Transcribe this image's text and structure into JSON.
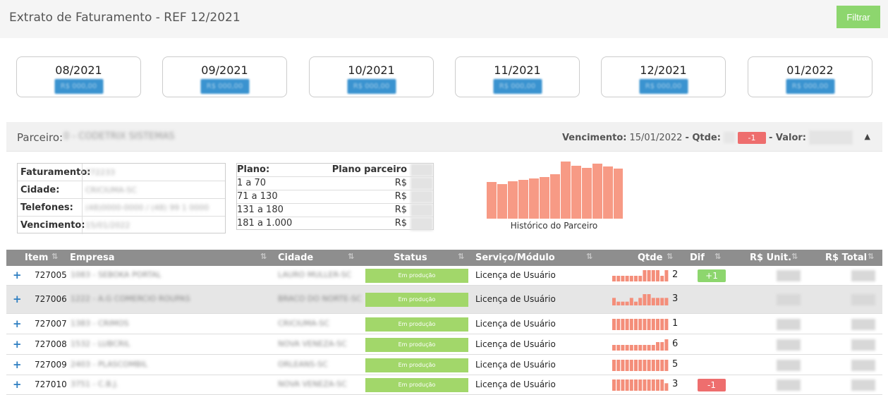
{
  "header": {
    "title": "Extrato de Faturamento - REF 12/2021",
    "filter_label": "Filtrar"
  },
  "months": [
    {
      "label": "08/2021",
      "value": "R$ 000,00"
    },
    {
      "label": "09/2021",
      "value": "R$ 000,00"
    },
    {
      "label": "10/2021",
      "value": "R$ 000,00"
    },
    {
      "label": "11/2021",
      "value": "R$ 000,00"
    },
    {
      "label": "12/2021",
      "value": "R$ 000,00"
    },
    {
      "label": "01/2022",
      "value": "R$ 000,00"
    }
  ],
  "partner": {
    "label": "Parceiro:",
    "name": "0 - CODETRIX SISTEMAS",
    "vencimento_label": "Vencimento:",
    "vencimento": "15/01/2022",
    "qtde_label": "- Qtde:",
    "qtde_delta": "-1",
    "valor_label": "- Valor:"
  },
  "info": [
    {
      "key": "Faturamento:",
      "value": "772233"
    },
    {
      "key": "Cidade:",
      "value": "CRICIUMA-SC"
    },
    {
      "key": "Telefones:",
      "value": "(48)0000-0000 / (48) 99 1 0000"
    },
    {
      "key": "Vencimento:",
      "value": "15/01/2022"
    }
  ],
  "plan": {
    "head_left": "Plano:",
    "head_right": "Plano parceiro",
    "rows": [
      {
        "range": "1 a 70",
        "price": "R$"
      },
      {
        "range": "71 a 130",
        "price": "R$"
      },
      {
        "range": "131 a 180",
        "price": "R$"
      },
      {
        "range": "181 a 1.000",
        "price": "R$"
      }
    ]
  },
  "history": {
    "label": "Histórico do Parceiro",
    "values": [
      52,
      49,
      53,
      55,
      57,
      59,
      63,
      81,
      75,
      72,
      78,
      74,
      71
    ],
    "color": "#f79a85"
  },
  "columns": [
    {
      "label": "Item",
      "sort": "⇅"
    },
    {
      "label": "Empresa",
      "sort": "⇅"
    },
    {
      "label": "Cidade",
      "sort": "⇅"
    },
    {
      "label": "Status",
      "sort": "⇅"
    },
    {
      "label": "Serviço/Módulo",
      "sort": "⇅"
    },
    {
      "label": "Qtde",
      "sort": "⇅"
    },
    {
      "label": "Dif",
      "sort": "⇅"
    },
    {
      "label": "R$ Unit.",
      "sort": "⇅"
    },
    {
      "label": "R$ Total",
      "sort": "⇅"
    }
  ],
  "rows": [
    {
      "expand": "+",
      "item": "727005",
      "empresa": "1083 - SEBOKA PORTAL",
      "cidade": "LAURO MULLER-SC",
      "status": "Em produção",
      "servico": "Licença de Usuário",
      "qtde": "2",
      "dif": "+1",
      "dif_type": "green",
      "spark": [
        1,
        1,
        1,
        1,
        1,
        1,
        1,
        2,
        2,
        2,
        2,
        1,
        2
      ]
    },
    {
      "expand": "+",
      "item": "727006",
      "empresa": "1222 - A.G COMERCIO ROUPAS",
      "cidade": "BRACO DO NORTE-SC",
      "status": "Em produção",
      "servico": "Licença de Usuário",
      "qtde": "3",
      "dif": "",
      "dif_type": "",
      "spark": [
        2,
        1,
        1,
        1,
        2,
        1,
        2,
        3,
        3,
        2,
        2,
        2,
        2
      ]
    },
    {
      "expand": "+",
      "item": "727007",
      "empresa": "1383 - CRIMOS",
      "cidade": "CRICIUMA-SC",
      "status": "Em produção",
      "servico": "Licença de Usuário",
      "qtde": "1",
      "dif": "",
      "dif_type": "",
      "spark": [
        1,
        1,
        1,
        1,
        1,
        1,
        1,
        1,
        1,
        1,
        1,
        1,
        1
      ]
    },
    {
      "expand": "+",
      "item": "727008",
      "empresa": "1532 - LUBCRIL",
      "cidade": "NOVA VENEZA-SC",
      "status": "Em produção",
      "servico": "Licença de Usuário",
      "qtde": "6",
      "dif": "",
      "dif_type": "",
      "spark": [
        2,
        2,
        2,
        2,
        2,
        2,
        2,
        2,
        2,
        2,
        3,
        3,
        4
      ]
    },
    {
      "expand": "+",
      "item": "727009",
      "empresa": "2403 - PLASCOMBIL",
      "cidade": "ORLEANS-SC",
      "status": "Em produção",
      "servico": "Licença de Usuário",
      "qtde": "5",
      "dif": "",
      "dif_type": "",
      "spark": [
        1,
        1,
        1,
        1,
        1,
        1,
        1,
        1,
        1,
        1,
        1,
        1,
        1
      ]
    },
    {
      "expand": "+",
      "item": "727010",
      "empresa": "3751 - C.B.J.",
      "cidade": "NOVA VENEZA-SC",
      "status": "Em produção",
      "servico": "Licença de Usuário",
      "qtde": "3",
      "dif": "-1",
      "dif_type": "red",
      "spark": [
        3,
        3,
        3,
        3,
        3,
        3,
        3,
        3,
        3,
        3,
        3,
        3,
        2
      ]
    }
  ]
}
